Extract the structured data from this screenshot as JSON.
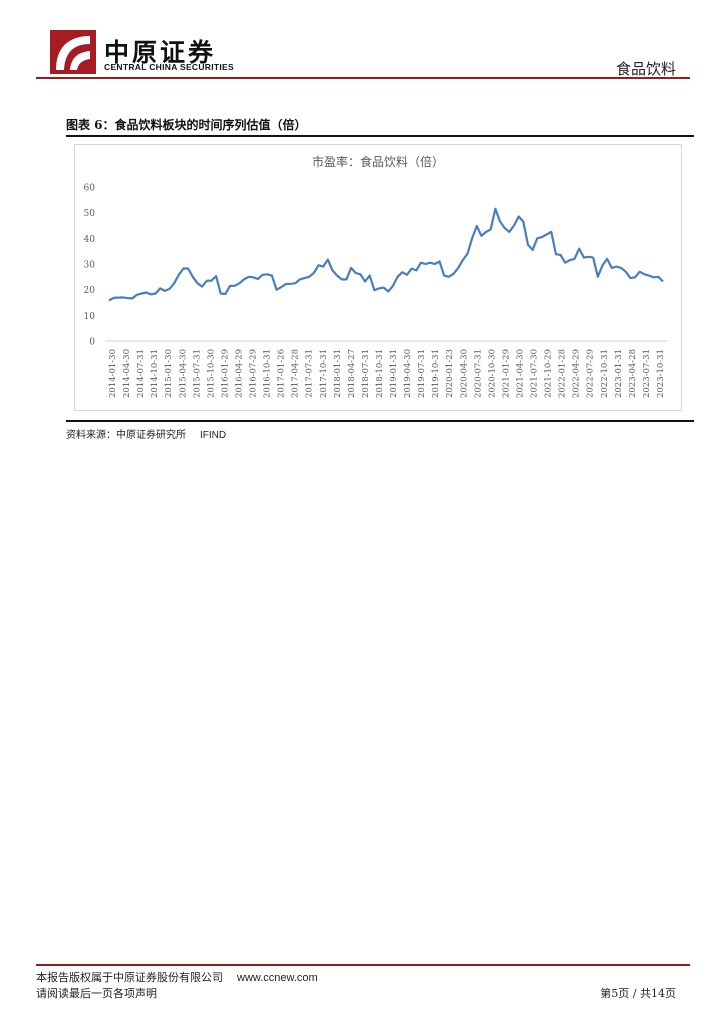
{
  "header": {
    "company_cn": "中原证券",
    "company_en": "CENTRAL CHINA SECURITIES",
    "sector": "食品饮料"
  },
  "figure": {
    "title": "图表 6：食品饮料板块的时间序列估值（倍）",
    "source_label": "资料来源：中原证券研究所",
    "source_vendor": "IFIND"
  },
  "footer": {
    "copyright": "本报告版权属于中原证券股份有限公司",
    "website": "www.ccnew.com",
    "disclaimer": "请阅读最后一页各项声明",
    "page": "第5页 / 共14页"
  },
  "chart_data": {
    "type": "line",
    "title": "市盈率：食品饮料（倍）",
    "ylim": [
      0,
      60
    ],
    "yticks": [
      0,
      10,
      20,
      30,
      40,
      50,
      60
    ],
    "line_color": "#4a7ebb",
    "grid": false,
    "x_tick_labels": [
      "2014-01-30",
      "2014-04-30",
      "2014-07-31",
      "2014-10-31",
      "2015-01-30",
      "2015-04-30",
      "2015-07-31",
      "2015-10-30",
      "2016-01-29",
      "2016-04-29",
      "2016-07-29",
      "2016-10-31",
      "2017-01-26",
      "2017-04-28",
      "2017-07-31",
      "2017-10-31",
      "2018-01-31",
      "2018-04-27",
      "2018-07-31",
      "2018-10-31",
      "2019-01-31",
      "2019-04-30",
      "2019-07-31",
      "2019-10-31",
      "2020-01-23",
      "2020-04-30",
      "2020-07-31",
      "2020-10-30",
      "2021-01-29",
      "2021-04-30",
      "2021-07-30",
      "2021-10-29",
      "2022-01-28",
      "2022-04-29",
      "2022-07-29",
      "2022-10-31",
      "2023-01-31",
      "2023-04-28",
      "2023-07-31",
      "2023-10-31"
    ],
    "series": [
      {
        "values": [
          15.8,
          16.8,
          16.9,
          17.0,
          16.7,
          16.6,
          18.0,
          18.5,
          18.9,
          18.2,
          18.5,
          20.5,
          19.5,
          20.3,
          22.5,
          25.8,
          28.3,
          28.2,
          25.0,
          22.5,
          21.2,
          23.5,
          23.5,
          25.3,
          18.5,
          18.3,
          21.5,
          21.5,
          22.5,
          24.0,
          25.0,
          24.8,
          24.2,
          25.8,
          26.0,
          25.5,
          20.0,
          21.0,
          22.2,
          22.3,
          22.5,
          24.0,
          24.5,
          25.0,
          26.5,
          29.5,
          29.0,
          31.7,
          27.5,
          25.5,
          24.0,
          24.0,
          28.5,
          26.5,
          26.0,
          23.2,
          25.5,
          19.8,
          20.5,
          20.8,
          19.3,
          21.5,
          25.0,
          26.8,
          25.8,
          28.2,
          27.5,
          30.5,
          30.0,
          30.5,
          30.0,
          31.0,
          25.5,
          25.0,
          26.2,
          28.5,
          31.5,
          34.0,
          40.0,
          44.8,
          41.0,
          42.5,
          43.5,
          51.5,
          46.5,
          44.0,
          42.5,
          45.0,
          48.5,
          46.5,
          37.5,
          35.5,
          40.0,
          40.5,
          41.5,
          42.5,
          33.8,
          33.5,
          30.5,
          31.5,
          32.0,
          36.0,
          32.5,
          32.8,
          32.5,
          25.0,
          29.5,
          32.0,
          28.5,
          29.0,
          28.5,
          27.0,
          24.5,
          24.8,
          27.0,
          26.0,
          25.5,
          24.8,
          25.0,
          23.2
        ]
      }
    ]
  }
}
